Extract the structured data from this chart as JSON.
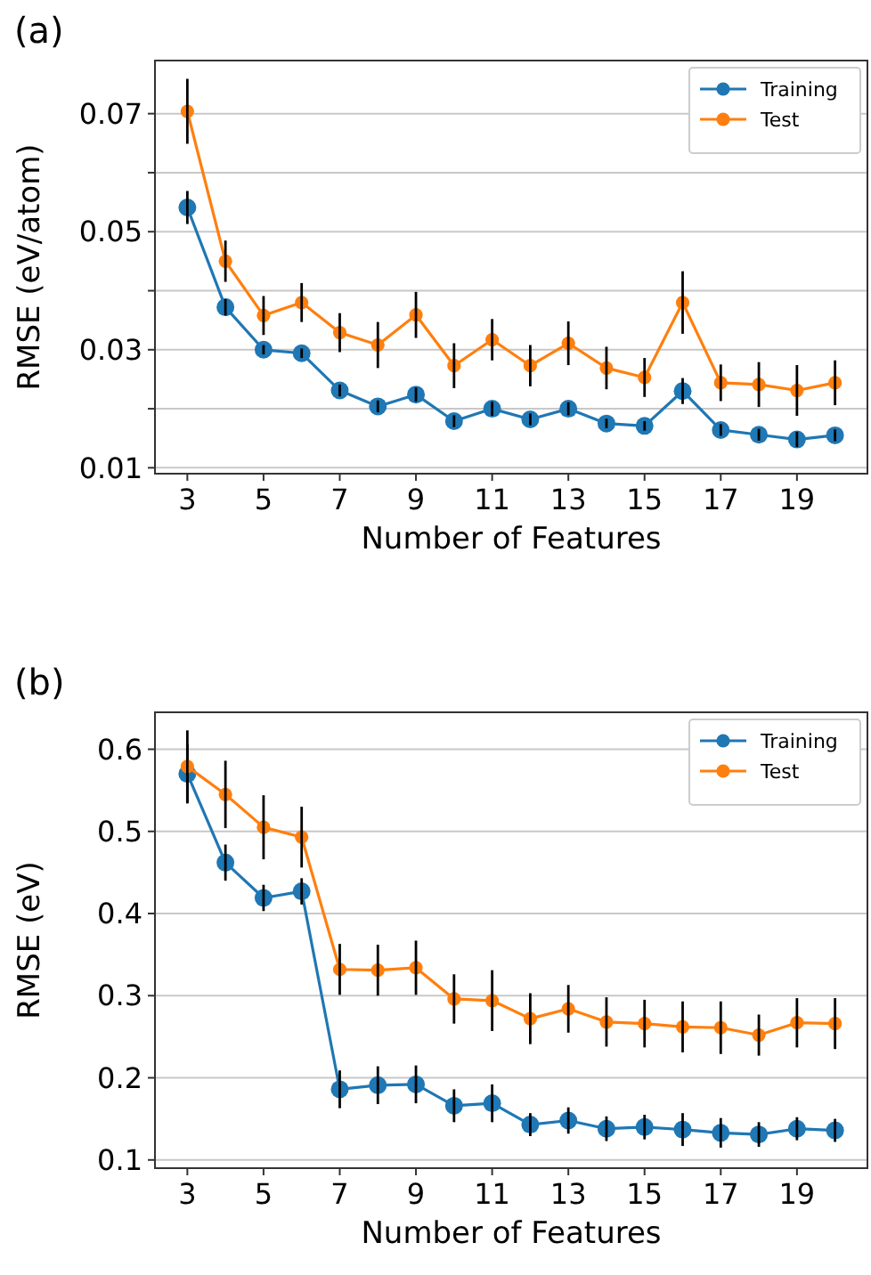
{
  "chart_data": [
    {
      "type": "line",
      "title": "(a)",
      "xlabel": "Number of Features",
      "ylabel": "RMSE (eV/atom)",
      "x": [
        3,
        4,
        5,
        6,
        7,
        8,
        9,
        10,
        11,
        12,
        13,
        14,
        15,
        16,
        17,
        18,
        19,
        20
      ],
      "xlim": [
        2.15,
        20.85
      ],
      "xticks": [
        3,
        5,
        7,
        9,
        11,
        13,
        15,
        17,
        19
      ],
      "ylim": [
        0.009,
        0.079
      ],
      "yticks": [
        0.01,
        {
          "value": 0.02,
          "label": null
        },
        0.03,
        {
          "value": 0.04,
          "label": null
        },
        0.05,
        {
          "value": 0.06,
          "label": null
        },
        0.07
      ],
      "grid": "y",
      "legend": "top right",
      "marker": "circle",
      "line_style": "solid",
      "series": [
        {
          "name": "Training",
          "color": "#1f77b4",
          "values": [
            0.0541,
            0.0372,
            0.03,
            0.0294,
            0.0231,
            0.0204,
            0.0224,
            0.0179,
            0.02,
            0.0182,
            0.02,
            0.0175,
            0.0171,
            0.023,
            0.0164,
            0.0156,
            0.0148,
            0.0155
          ],
          "errors": [
            0.0028,
            0.0014,
            0.0008,
            0.0008,
            0.001,
            0.001,
            0.0012,
            0.001,
            0.0012,
            0.001,
            0.0011,
            0.0008,
            0.0008,
            0.0022,
            0.001,
            0.001,
            0.0013,
            0.001
          ]
        },
        {
          "name": "Test",
          "color": "#ff7f0e",
          "values": [
            0.0704,
            0.045,
            0.0358,
            0.038,
            0.0329,
            0.0308,
            0.0359,
            0.0273,
            0.0317,
            0.0273,
            0.0311,
            0.0269,
            0.0253,
            0.038,
            0.0244,
            0.0241,
            0.0231,
            0.0244
          ],
          "errors": [
            0.0055,
            0.0035,
            0.0033,
            0.0033,
            0.0033,
            0.0039,
            0.0039,
            0.0038,
            0.0035,
            0.0035,
            0.0037,
            0.0036,
            0.0033,
            0.0053,
            0.0031,
            0.0038,
            0.0043,
            0.0038
          ]
        }
      ]
    },
    {
      "type": "line",
      "title": "(b)",
      "xlabel": "Number of Features",
      "ylabel": "RMSE (eV)",
      "x": [
        3,
        4,
        5,
        6,
        7,
        8,
        9,
        10,
        11,
        12,
        13,
        14,
        15,
        16,
        17,
        18,
        19,
        20
      ],
      "xlim": [
        2.15,
        20.85
      ],
      "xticks": [
        3,
        5,
        7,
        9,
        11,
        13,
        15,
        17,
        19
      ],
      "ylim": [
        0.09,
        0.645
      ],
      "yticks": [
        0.1,
        0.2,
        0.3,
        0.4,
        0.5,
        0.6
      ],
      "grid": "y",
      "legend": "top right",
      "marker": "circle",
      "line_style": "solid",
      "series": [
        {
          "name": "Training",
          "color": "#1f77b4",
          "values": [
            0.57,
            0.462,
            0.419,
            0.427,
            0.186,
            0.191,
            0.192,
            0.166,
            0.169,
            0.143,
            0.148,
            0.138,
            0.14,
            0.137,
            0.133,
            0.131,
            0.138,
            0.136
          ],
          "errors": [
            0.036,
            0.022,
            0.016,
            0.016,
            0.023,
            0.023,
            0.023,
            0.02,
            0.023,
            0.014,
            0.016,
            0.015,
            0.015,
            0.02,
            0.018,
            0.015,
            0.014,
            0.014
          ]
        },
        {
          "name": "Test",
          "color": "#ff7f0e",
          "values": [
            0.579,
            0.545,
            0.505,
            0.493,
            0.332,
            0.331,
            0.334,
            0.296,
            0.294,
            0.272,
            0.284,
            0.268,
            0.266,
            0.262,
            0.261,
            0.252,
            0.267,
            0.266
          ],
          "errors": [
            0.044,
            0.041,
            0.039,
            0.037,
            0.031,
            0.031,
            0.033,
            0.03,
            0.037,
            0.031,
            0.029,
            0.03,
            0.029,
            0.031,
            0.032,
            0.025,
            0.03,
            0.031
          ]
        }
      ]
    }
  ]
}
